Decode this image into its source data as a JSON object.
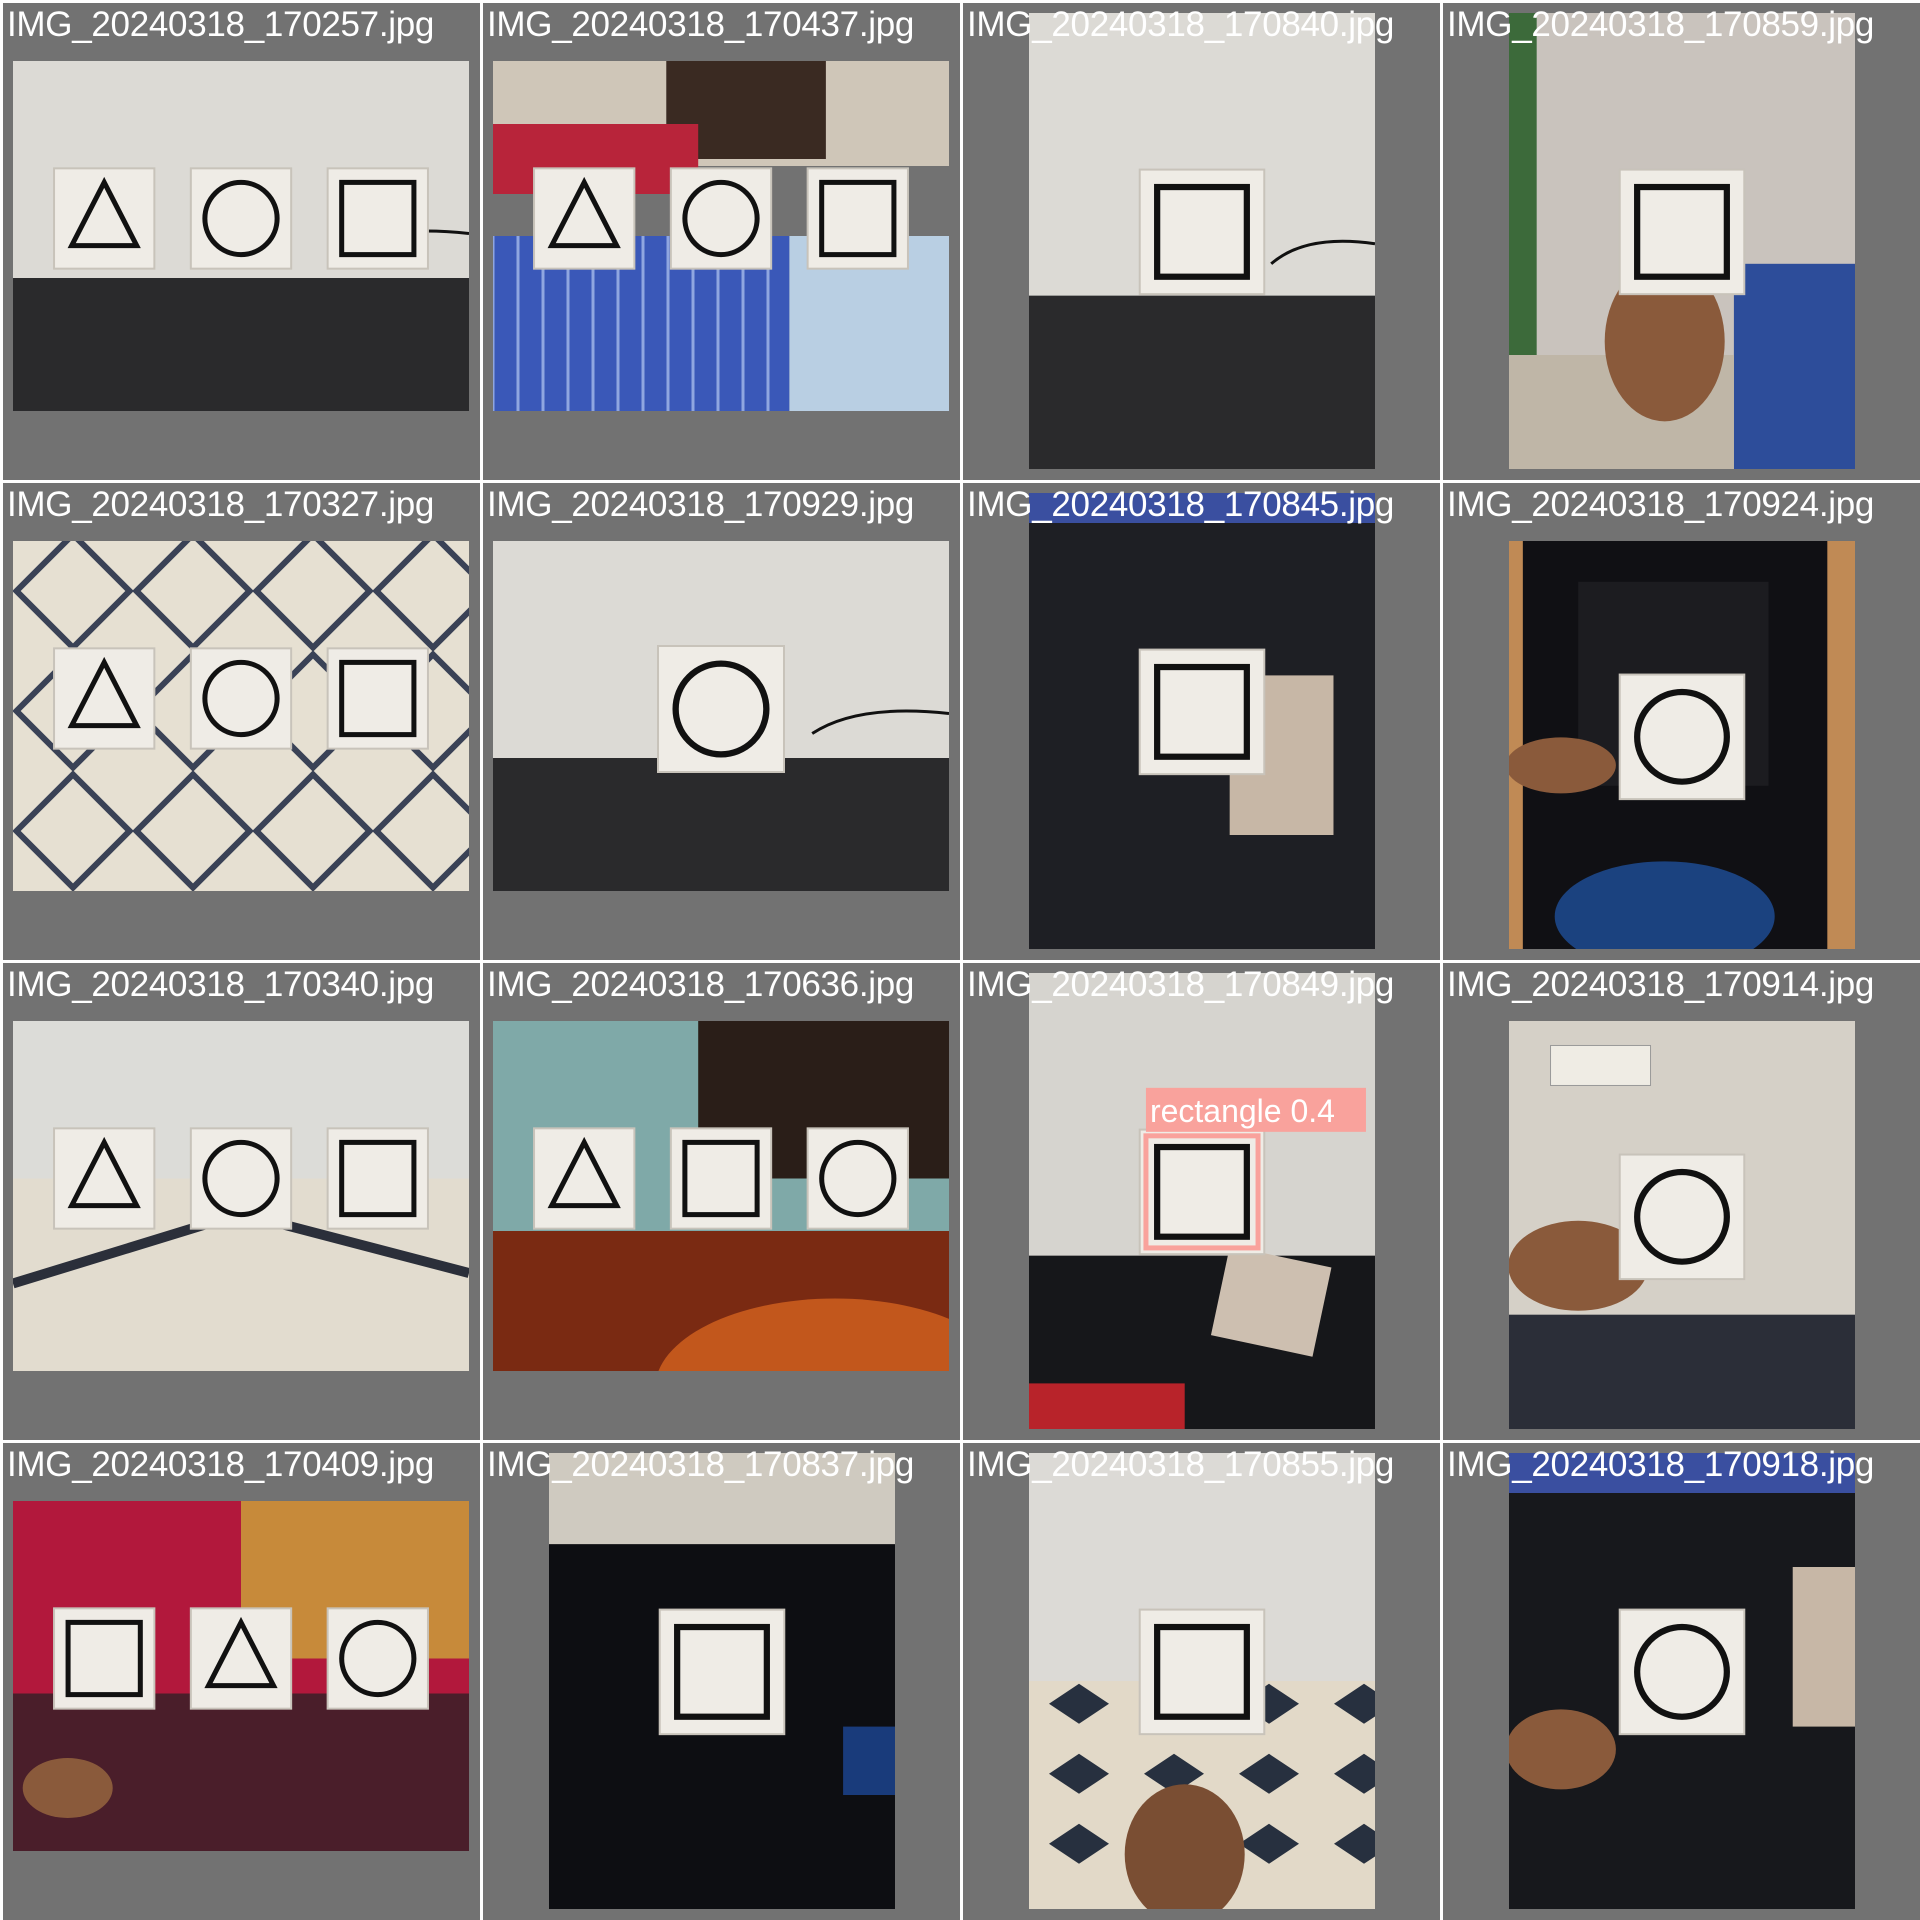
{
  "grid": {
    "columns": 4,
    "rows": 4,
    "background": "#727272",
    "label_color": "#ffffff"
  },
  "cells": [
    {
      "filename": "IMG_20240318_170257.jpg",
      "shapes": [
        "triangle",
        "circle",
        "square"
      ],
      "scene": "desk-wall"
    },
    {
      "filename": "IMG_20240318_170437.jpg",
      "shapes": [
        "triangle",
        "circle",
        "square"
      ],
      "scene": "bed"
    },
    {
      "filename": "IMG_20240318_170840.jpg",
      "shapes": [
        "square"
      ],
      "scene": "desk-wall"
    },
    {
      "filename": "IMG_20240318_170859.jpg",
      "shapes": [
        "square"
      ],
      "scene": "hand-room"
    },
    {
      "filename": "IMG_20240318_170327.jpg",
      "shapes": [
        "triangle",
        "circle",
        "square"
      ],
      "scene": "tile-floor"
    },
    {
      "filename": "IMG_20240318_170929.jpg",
      "shapes": [
        "circle"
      ],
      "scene": "desk-wall"
    },
    {
      "filename": "IMG_20240318_170845.jpg",
      "shapes": [
        "square"
      ],
      "scene": "clothes"
    },
    {
      "filename": "IMG_20240318_170924.jpg",
      "shapes": [
        "circle"
      ],
      "scene": "hand-laptop"
    },
    {
      "filename": "IMG_20240318_170340.jpg",
      "shapes": [
        "triangle",
        "circle",
        "square"
      ],
      "scene": "marble-floor"
    },
    {
      "filename": "IMG_20240318_170636.jpg",
      "shapes": [
        "triangle",
        "square",
        "circle"
      ],
      "scene": "guitar-shelf"
    },
    {
      "filename": "IMG_20240318_170849.jpg",
      "shapes": [
        "square"
      ],
      "scene": "wall-clothes",
      "detection": {
        "label": "rectangle 0.4",
        "color": "#f9a29c"
      }
    },
    {
      "filename": "IMG_20240318_170914.jpg",
      "shapes": [
        "circle"
      ],
      "scene": "hand-wall"
    },
    {
      "filename": "IMG_20240318_170409.jpg",
      "shapes": [
        "square",
        "triangle",
        "circle"
      ],
      "scene": "red-cloth"
    },
    {
      "filename": "IMG_20240318_170837.jpg",
      "shapes": [
        "square"
      ],
      "scene": "laptop-top"
    },
    {
      "filename": "IMG_20240318_170855.jpg",
      "shapes": [
        "square"
      ],
      "scene": "hand-tiles"
    },
    {
      "filename": "IMG_20240318_170918.jpg",
      "shapes": [
        "circle"
      ],
      "scene": "hand-clothes"
    }
  ]
}
